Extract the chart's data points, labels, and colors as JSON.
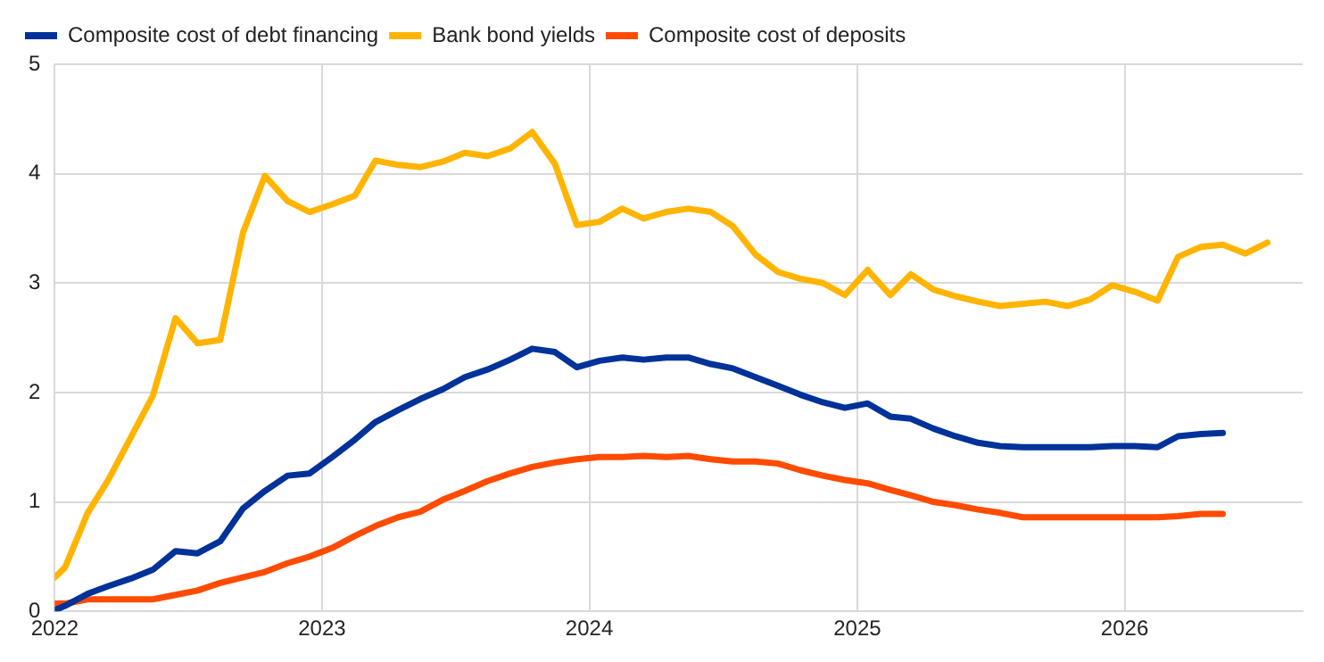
{
  "chart_data": {
    "type": "line",
    "x": [
      "2022-01-01",
      "2022-01-15",
      "2022-02-15",
      "2022-03-15",
      "2022-04-15",
      "2022-05-15",
      "2022-06-15",
      "2022-07-15",
      "2022-08-15",
      "2022-09-15",
      "2022-10-15",
      "2022-11-15",
      "2022-12-15",
      "2023-01-15",
      "2023-02-15",
      "2023-03-15",
      "2023-04-15",
      "2023-05-15",
      "2023-06-15",
      "2023-07-15",
      "2023-08-15",
      "2023-09-15",
      "2023-10-15",
      "2023-11-15",
      "2023-12-15",
      "2024-01-15",
      "2024-02-15",
      "2024-03-15",
      "2024-04-15",
      "2024-05-15",
      "2024-06-15",
      "2024-07-15",
      "2024-08-15",
      "2024-09-15",
      "2024-10-15",
      "2024-11-15",
      "2024-12-15",
      "2025-01-15",
      "2025-02-15",
      "2025-03-15",
      "2025-04-15",
      "2025-05-15",
      "2025-06-15",
      "2025-07-15",
      "2025-08-15",
      "2025-09-15",
      "2025-10-15",
      "2025-11-15",
      "2025-12-15",
      "2026-01-15",
      "2026-02-15",
      "2026-03-15",
      "2026-04-15",
      "2026-05-15",
      "2026-06-15",
      "2026-07-15"
    ],
    "series": [
      {
        "name": "Composite cost of debt financing",
        "color": "#003299",
        "values": [
          0.01,
          0.05,
          0.16,
          0.23,
          0.3,
          0.38,
          0.55,
          0.53,
          0.64,
          0.94,
          1.1,
          1.24,
          1.26,
          1.41,
          1.57,
          1.73,
          1.84,
          1.94,
          2.03,
          2.14,
          2.21,
          2.3,
          2.4,
          2.37,
          2.23,
          2.29,
          2.32,
          2.3,
          2.32,
          2.32,
          2.26,
          2.22,
          2.14,
          2.06,
          1.98,
          1.91,
          1.86,
          1.9,
          1.78,
          1.76,
          1.67,
          1.6,
          1.54,
          1.51,
          1.5,
          1.5,
          1.5,
          1.5,
          1.51,
          1.51,
          1.5,
          1.6,
          1.62,
          1.63,
          null,
          null
        ]
      },
      {
        "name": "Bank bond yields",
        "color": "#ffb400",
        "values": [
          0.31,
          0.4,
          0.9,
          1.2,
          1.59,
          1.97,
          2.68,
          2.45,
          2.48,
          3.46,
          3.98,
          3.75,
          3.65,
          3.72,
          3.8,
          4.12,
          4.08,
          4.06,
          4.11,
          4.19,
          4.16,
          4.23,
          4.38,
          4.09,
          3.53,
          3.56,
          3.68,
          3.59,
          3.65,
          3.68,
          3.65,
          3.52,
          3.26,
          3.1,
          3.04,
          3.0,
          2.89,
          3.12,
          2.89,
          3.08,
          2.94,
          2.88,
          2.83,
          2.79,
          2.81,
          2.83,
          2.79,
          2.85,
          2.98,
          2.92,
          2.84,
          3.24,
          3.33,
          3.35,
          3.27,
          3.37
        ]
      },
      {
        "name": "Composite cost of deposits",
        "color": "#ff4b00",
        "values": [
          0.07,
          0.07,
          0.11,
          0.11,
          0.11,
          0.11,
          0.15,
          0.19,
          0.26,
          0.31,
          0.36,
          0.44,
          0.5,
          0.58,
          0.69,
          0.78,
          0.86,
          0.91,
          1.02,
          1.1,
          1.19,
          1.26,
          1.32,
          1.36,
          1.39,
          1.41,
          1.41,
          1.42,
          1.41,
          1.42,
          1.39,
          1.37,
          1.37,
          1.35,
          1.29,
          1.24,
          1.2,
          1.17,
          1.11,
          1.06,
          1.0,
          0.97,
          0.93,
          0.9,
          0.86,
          0.86,
          0.86,
          0.86,
          0.86,
          0.86,
          0.86,
          0.87,
          0.89,
          0.89,
          null,
          null
        ]
      }
    ],
    "xlim": [
      "2022",
      "2026-09"
    ],
    "xticks": [
      "2022",
      "2023",
      "2024",
      "2025",
      "2026"
    ],
    "ylim": [
      0,
      5
    ],
    "yticks": [
      0,
      1,
      2,
      3,
      4,
      5
    ],
    "grid": true,
    "legend": "top left",
    "line_style": "solid",
    "marker": "none"
  }
}
